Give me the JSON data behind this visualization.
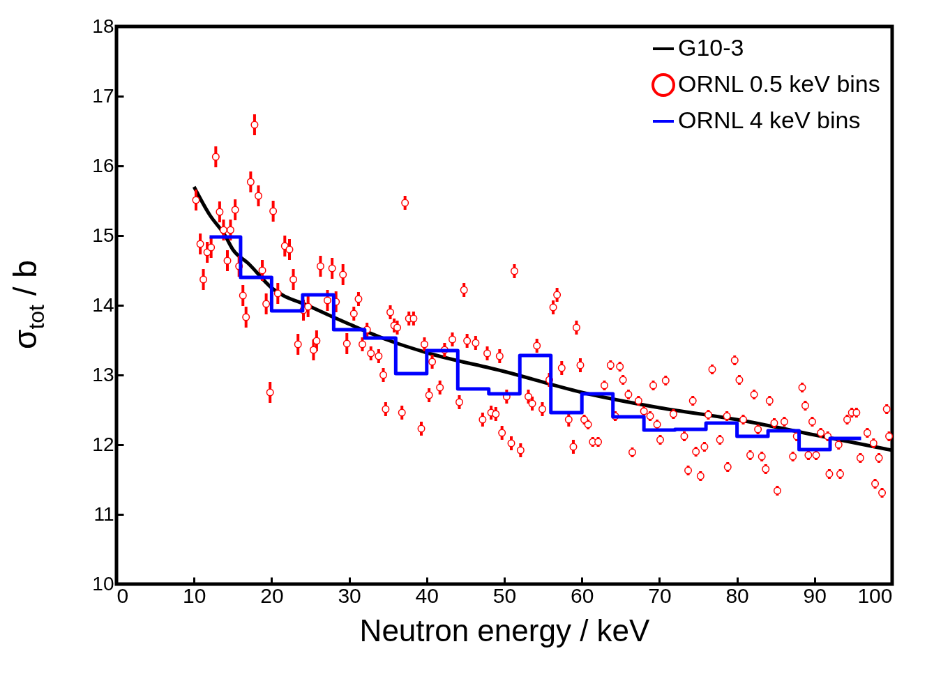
{
  "chart_data": {
    "type": "scatter",
    "xlabel": "Neutron energy / keV",
    "ylabel": "σ$_{tot}$ / b",
    "xlim": [
      0,
      100
    ],
    "xticks": [
      0,
      10,
      20,
      30,
      40,
      50,
      60,
      70,
      80,
      90,
      100
    ],
    "ylim": [
      10,
      18
    ],
    "yticks": [
      10,
      11,
      12,
      13,
      14,
      15,
      16,
      17,
      18
    ],
    "grid": false,
    "legend": "top right",
    "series": [
      {
        "name": "G10-3",
        "type": "line",
        "color": "#000000",
        "marker": "none",
        "line_style": "solid",
        "x": [
          10,
          12,
          14,
          15,
          17,
          20,
          25,
          30,
          35,
          40,
          50,
          60,
          70,
          80,
          90,
          100
        ],
        "values": [
          15.7,
          15.3,
          15.0,
          14.8,
          14.6,
          14.25,
          13.98,
          13.73,
          13.5,
          13.32,
          13.05,
          12.75,
          12.53,
          12.36,
          12.14,
          11.92
        ]
      },
      {
        "name": "ORNL 0.5 keV bins",
        "color": "#ff0000",
        "marker": "circle",
        "x": [
          10.25,
          10.8,
          11.2,
          11.7,
          12.2,
          12.8,
          13.3,
          13.8,
          14.3,
          14.7,
          15.3,
          15.8,
          16.3,
          16.7,
          17.3,
          17.8,
          18.3,
          18.8,
          19.3,
          19.8,
          20.2,
          20.8,
          21.7,
          22.3,
          22.8,
          23.4,
          24.1,
          24.7,
          25.4,
          25.8,
          26.3,
          27.2,
          27.8,
          28.3,
          29.2,
          29.7,
          30.6,
          31.2,
          31.7,
          32.3,
          32.8,
          33.8,
          34.4,
          34.7,
          35.3,
          35.8,
          36.2,
          36.8,
          37.2,
          37.7,
          38.3,
          39.3,
          39.7,
          40.3,
          40.7,
          41.7,
          42.3,
          43.3,
          44.2,
          44.8,
          45.2,
          46.3,
          47.2,
          47.8,
          48.3,
          48.9,
          49.4,
          49.7,
          50.3,
          50.9,
          51.3,
          52.1,
          53.1,
          53.6,
          54.2,
          54.9,
          55.8,
          56.3,
          56.8,
          57.4,
          58.3,
          58.9,
          59.3,
          59.8,
          60.3,
          60.8,
          61.4,
          62.1,
          62.9,
          63.7,
          64.3,
          64.9,
          65.3,
          66.0,
          66.5,
          67.3,
          68.0,
          68.8,
          69.2,
          69.7,
          70.1,
          70.8,
          71.8,
          73.2,
          73.7,
          74.3,
          74.7,
          75.3,
          75.8,
          76.3,
          76.8,
          77.8,
          78.7,
          78.8,
          79.7,
          80.3,
          80.8,
          81.7,
          82.2,
          82.7,
          83.2,
          83.7,
          84.2,
          84.8,
          85.2,
          86.1,
          87.2,
          87.7,
          88.4,
          88.8,
          89.2,
          89.7,
          90.2,
          90.8,
          91.7,
          91.9,
          93.1,
          93.3,
          94.2,
          94.8,
          95.4,
          95.9,
          96.8,
          97.6,
          97.8,
          98.3,
          98.7,
          99.3,
          99.6
        ],
        "values": [
          15.51,
          14.88,
          14.37,
          14.76,
          14.83,
          16.13,
          15.34,
          15.08,
          14.64,
          15.08,
          15.37,
          14.56,
          14.14,
          13.83,
          15.77,
          16.59,
          15.57,
          14.5,
          14.02,
          12.75,
          15.35,
          14.17,
          14.85,
          14.8,
          14.37,
          13.44,
          13.93,
          13.98,
          13.36,
          13.49,
          14.56,
          14.07,
          14.53,
          14.05,
          14.44,
          13.45,
          13.88,
          14.09,
          13.44,
          13.65,
          13.31,
          13.27,
          13.0,
          12.51,
          13.9,
          13.71,
          13.68,
          12.46,
          15.47,
          13.81,
          13.81,
          12.23,
          13.44,
          12.71,
          13.19,
          12.82,
          13.36,
          13.51,
          12.61,
          14.22,
          13.49,
          13.46,
          12.36,
          13.31,
          12.46,
          12.44,
          13.27,
          12.17,
          12.69,
          12.02,
          14.49,
          11.92,
          12.69,
          12.59,
          13.42,
          12.51,
          12.93,
          13.97,
          14.15,
          13.1,
          12.36,
          11.97,
          13.68,
          13.14,
          12.36,
          12.29,
          12.04,
          12.04,
          12.85,
          13.14,
          12.41,
          13.12,
          12.93,
          12.72,
          11.89,
          12.63,
          12.48,
          12.41,
          12.85,
          12.29,
          12.07,
          12.92,
          12.44,
          12.12,
          11.63,
          12.63,
          11.9,
          11.55,
          11.97,
          12.43,
          13.08,
          12.07,
          12.41,
          11.68,
          13.21,
          12.93,
          12.36,
          11.85,
          12.72,
          12.22,
          11.83,
          11.65,
          12.63,
          12.31,
          11.34,
          12.33,
          11.83,
          12.12,
          12.82,
          12.56,
          11.85,
          12.33,
          11.85,
          12.17,
          12.12,
          11.58,
          12.0,
          11.58,
          12.36,
          12.46,
          12.46,
          11.81,
          12.17,
          12.02,
          11.44,
          11.81,
          11.31,
          12.51,
          12.12
        ],
        "errors": [
          0.15,
          0.15,
          0.15,
          0.15,
          0.15,
          0.15,
          0.15,
          0.15,
          0.15,
          0.15,
          0.15,
          0.15,
          0.15,
          0.15,
          0.15,
          0.15,
          0.15,
          0.15,
          0.15,
          0.15,
          0.15,
          0.15,
          0.15,
          0.15,
          0.15,
          0.15,
          0.15,
          0.15,
          0.15,
          0.15,
          0.15,
          0.15,
          0.15,
          0.15,
          0.15,
          0.15,
          0.1,
          0.1,
          0.1,
          0.1,
          0.1,
          0.1,
          0.1,
          0.1,
          0.1,
          0.1,
          0.1,
          0.1,
          0.1,
          0.1,
          0.1,
          0.1,
          0.1,
          0.1,
          0.1,
          0.1,
          0.1,
          0.1,
          0.1,
          0.1,
          0.1,
          0.1,
          0.1,
          0.1,
          0.1,
          0.1,
          0.1,
          0.1,
          0.1,
          0.1,
          0.1,
          0.1,
          0.1,
          0.1,
          0.1,
          0.1,
          0.1,
          0.1,
          0.1,
          0.1,
          0.1,
          0.1,
          0.1,
          0.1,
          0.07,
          0.07,
          0.07,
          0.07,
          0.07,
          0.07,
          0.07,
          0.07,
          0.07,
          0.07,
          0.07,
          0.07,
          0.07,
          0.07,
          0.07,
          0.07,
          0.07,
          0.07,
          0.07,
          0.07,
          0.07,
          0.07,
          0.07,
          0.07,
          0.07,
          0.07,
          0.07,
          0.07,
          0.07,
          0.07,
          0.07,
          0.07,
          0.07,
          0.07,
          0.07,
          0.07,
          0.07,
          0.07,
          0.07,
          0.07,
          0.07,
          0.07,
          0.07,
          0.07,
          0.07,
          0.07,
          0.07,
          0.07,
          0.07,
          0.07,
          0.07,
          0.07,
          0.07,
          0.07,
          0.07,
          0.07,
          0.07,
          0.07,
          0.07,
          0.07,
          0.07,
          0.07,
          0.07,
          0.07,
          0.07
        ]
      },
      {
        "name": "ORNL 4 keV bins",
        "type": "step",
        "color": "#0000ff",
        "marker": "none",
        "line_style": "solid",
        "x": [
          12,
          16,
          20,
          24,
          28,
          32,
          36,
          40,
          44,
          48,
          52,
          56,
          60,
          64,
          68,
          72,
          76,
          80,
          84,
          88,
          92,
          96
        ],
        "values": [
          14.98,
          14.4,
          13.92,
          14.15,
          13.65,
          13.53,
          13.02,
          13.35,
          12.8,
          12.73,
          13.28,
          12.46,
          12.73,
          12.4,
          12.21,
          12.22,
          12.31,
          12.12,
          12.2,
          11.93,
          12.09,
          12.09
        ]
      }
    ]
  }
}
